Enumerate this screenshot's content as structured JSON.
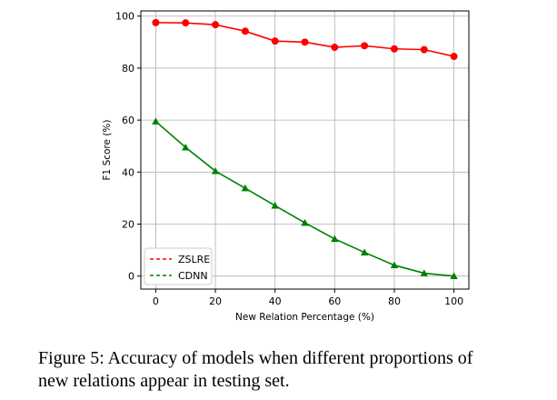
{
  "caption": "Figure 5:  Accuracy of models when different proportions of\nnew relations appear in testing set.",
  "chart_data": {
    "type": "line",
    "title": "",
    "xlabel": "New Relation Percentage (%)",
    "ylabel": "F1 Score (%)",
    "x": [
      0,
      10,
      20,
      30,
      40,
      50,
      60,
      70,
      80,
      90,
      100
    ],
    "xlim": [
      -5,
      105
    ],
    "ylim": [
      -5,
      102
    ],
    "xticks": [
      0,
      20,
      40,
      60,
      80,
      100
    ],
    "yticks": [
      0,
      20,
      40,
      60,
      80,
      100
    ],
    "grid": true,
    "legend_position": "lower-left",
    "series": [
      {
        "name": "ZSLRE",
        "color": "#ff0000",
        "marker": "circle",
        "legend_style": "dashed",
        "values": [
          97.5,
          97.4,
          96.7,
          94.2,
          90.4,
          90.0,
          88.0,
          88.6,
          87.4,
          87.1,
          84.5
        ]
      },
      {
        "name": "CDNN",
        "color": "#008000",
        "marker": "triangle",
        "legend_style": "dashed",
        "values": [
          59.5,
          49.5,
          40.4,
          33.8,
          27.1,
          20.5,
          14.3,
          9.1,
          4.2,
          1.1,
          0.0
        ]
      }
    ]
  }
}
